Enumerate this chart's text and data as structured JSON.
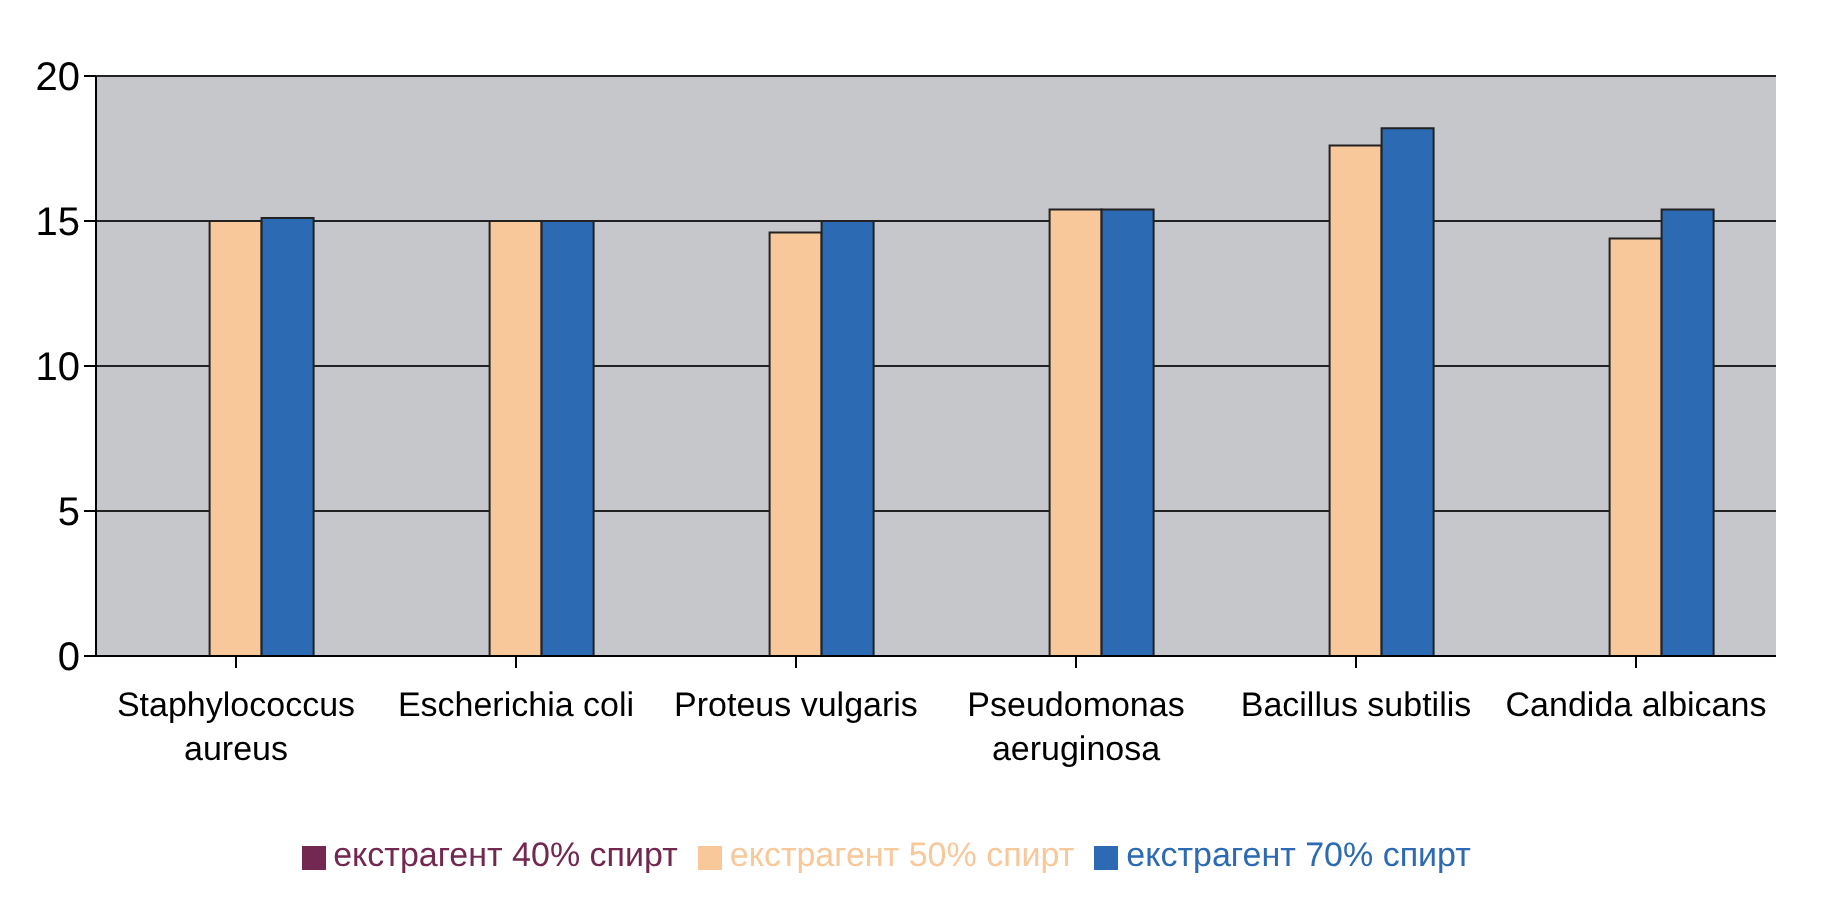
{
  "chart_data": {
    "type": "bar",
    "categories": [
      "Staphylococcus aureus",
      "Escherichia coli",
      "Proteus vulgaris",
      "Pseudomonas aeruginosa",
      "Bacillus subtilis",
      "Candida albicans"
    ],
    "series": [
      {
        "name": "екстрагент 40% спирт",
        "color": "#722850",
        "values": [
          0,
          0,
          0,
          0,
          0,
          0
        ]
      },
      {
        "name": "екстрагент 50% спирт",
        "color": "#f8c89a",
        "values": [
          15.0,
          15.0,
          14.6,
          15.4,
          17.6,
          14.4
        ]
      },
      {
        "name": "екстрагент 70% спирт",
        "color": "#2c6ab4",
        "values": [
          15.1,
          15.0,
          15.0,
          15.4,
          18.2,
          15.4
        ]
      }
    ],
    "ylim": [
      0,
      20
    ],
    "yticks": [
      0,
      5,
      10,
      15,
      20
    ],
    "grid": "y",
    "legend": "bottom"
  }
}
